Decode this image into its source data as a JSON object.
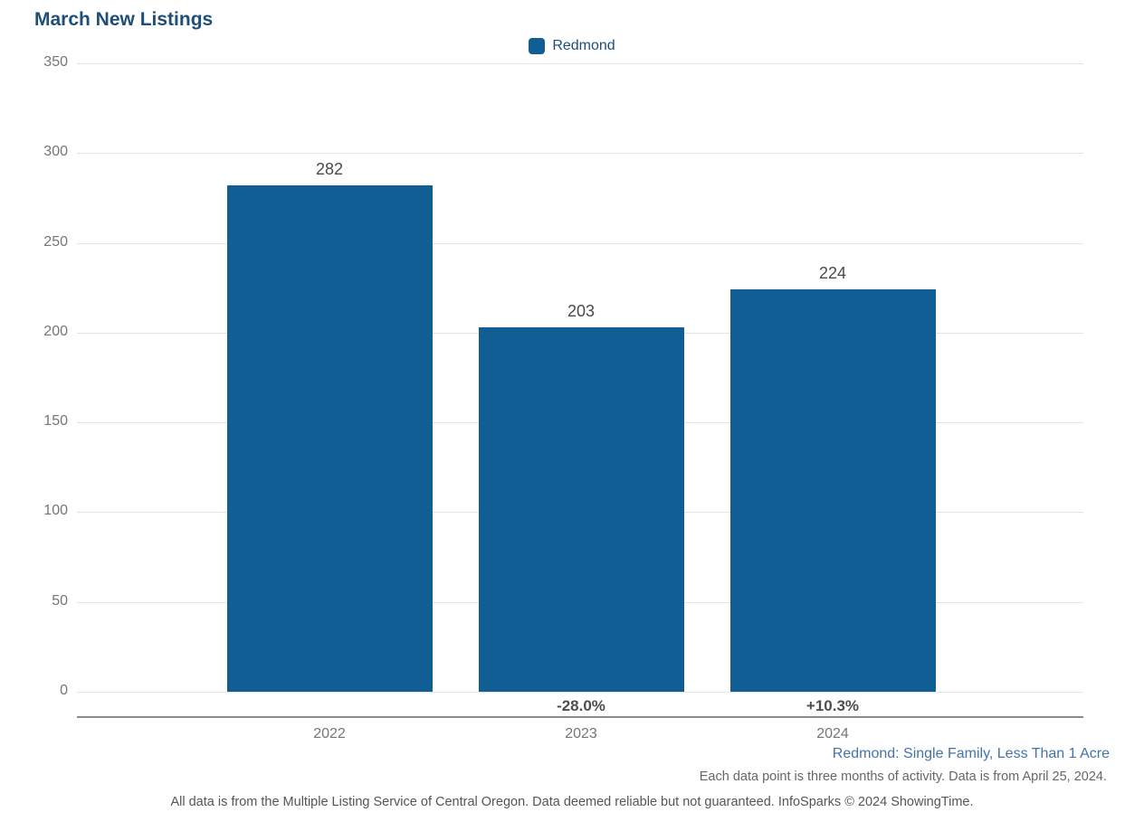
{
  "title": "March New Listings",
  "legend": {
    "label": "Redmond",
    "swatch_color": "#105E94"
  },
  "chart_data": {
    "type": "bar",
    "title": "March New Listings",
    "categories": [
      "2022",
      "2023",
      "2024"
    ],
    "series": [
      {
        "name": "Redmond",
        "values": [
          282,
          203,
          224
        ]
      }
    ],
    "value_labels": [
      "282",
      "203",
      "224"
    ],
    "pct_change_labels": [
      "",
      "-28.0%",
      "+10.3%"
    ],
    "ylim": [
      0,
      350
    ],
    "yticks": [
      350,
      300,
      250,
      200,
      150,
      100,
      50,
      0
    ],
    "grid": true,
    "legend_position": "top-center",
    "bar_color": "#105E94"
  },
  "colors": {
    "bar": "#105E94",
    "title": "#1E4E79",
    "grid_line": "#E3E3E3",
    "axis_line": "#8A8A8A",
    "tick_text": "#757575",
    "value_text": "#4A4A4A",
    "pct_text": "#4D4D4D",
    "segment_text": "#4473A9",
    "note_text": "#666666"
  },
  "footnotes": {
    "segment": "Redmond: Single Family, Less Than 1 Acre",
    "data_note": "Each data point is three months of activity. Data is from April 25, 2024.",
    "disclaimer": "All data is from the Multiple Listing Service of Central Oregon. Data deemed reliable but not guaranteed. InfoSparks © 2024 ShowingTime."
  }
}
